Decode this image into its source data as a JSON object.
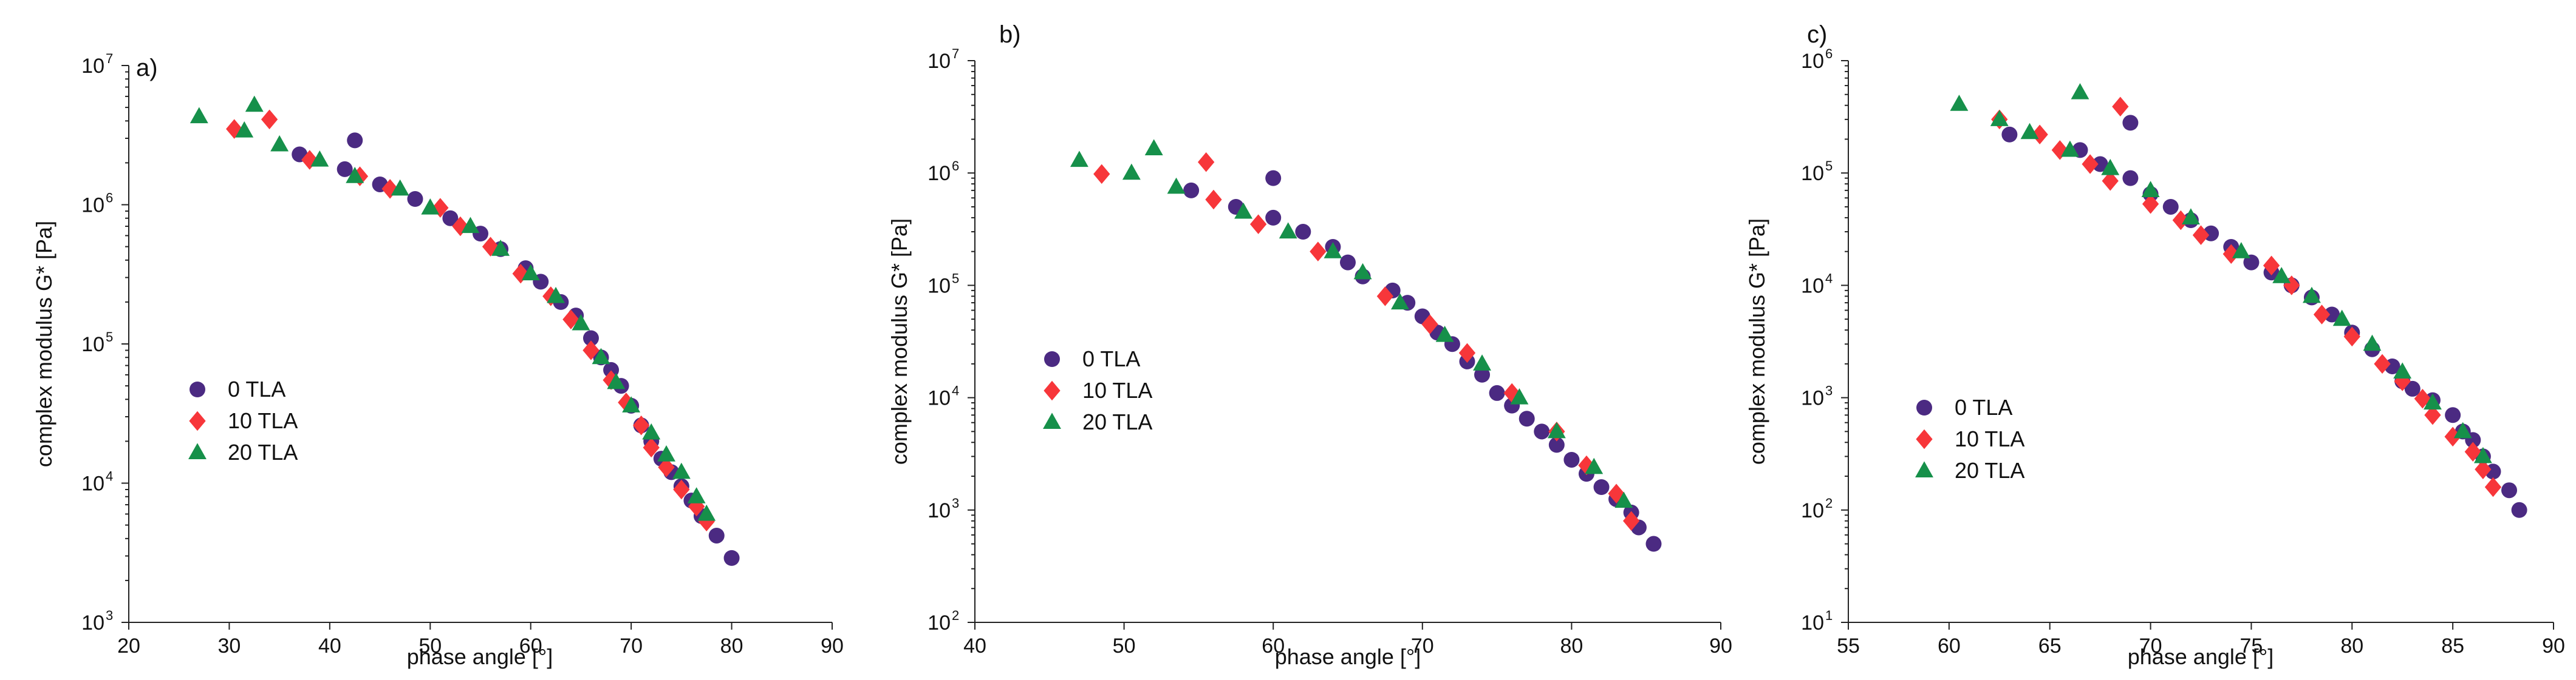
{
  "colors": {
    "0 TLA": "#4b2a82",
    "10 TLA": "#f7363a",
    "20 TLA": "#16904a"
  },
  "chart_data": [
    {
      "type": "scatter",
      "panel": "a)",
      "xlabel": "phase angle [°]",
      "ylabel": "complex modulus G* [Pa]",
      "xlim": [
        20,
        90
      ],
      "xticks": [
        20,
        30,
        40,
        50,
        60,
        70,
        80,
        90
      ],
      "ylog": true,
      "ylim_exp": [
        3,
        7
      ],
      "yticks_exp": [
        3,
        4,
        5,
        6,
        7
      ],
      "legend_position": "middle-left",
      "series": [
        {
          "name": "0 TLA",
          "marker": "circle",
          "points": [
            [
              42.5,
              2900000.0
            ],
            [
              37,
              2300000.0
            ],
            [
              41.5,
              1800000.0
            ],
            [
              45,
              1400000.0
            ],
            [
              48.5,
              1100000.0
            ],
            [
              52,
              800000.0
            ],
            [
              55,
              620000.0
            ],
            [
              57,
              480000.0
            ],
            [
              59.5,
              350000.0
            ],
            [
              61,
              280000.0
            ],
            [
              63,
              200000.0
            ],
            [
              64.5,
              160000.0
            ],
            [
              66,
              110000.0
            ],
            [
              67,
              80000.0
            ],
            [
              68,
              65000.0
            ],
            [
              69,
              50000.0
            ],
            [
              70,
              36000.0
            ],
            [
              71,
              26000.0
            ],
            [
              72,
              20000.0
            ],
            [
              73,
              15000.0
            ],
            [
              74,
              12000.0
            ],
            [
              75,
              9500.0
            ],
            [
              76,
              7500.0
            ],
            [
              77,
              5800.0
            ],
            [
              78.5,
              4200.0
            ],
            [
              80,
              2900.0
            ]
          ]
        },
        {
          "name": "10 TLA",
          "marker": "diamond",
          "points": [
            [
              34,
              4100000.0
            ],
            [
              30.5,
              3500000.0
            ],
            [
              38,
              2100000.0
            ],
            [
              43,
              1600000.0
            ],
            [
              46,
              1300000.0
            ],
            [
              51,
              950000.0
            ],
            [
              53,
              700000.0
            ],
            [
              56,
              500000.0
            ],
            [
              59,
              320000.0
            ],
            [
              62,
              220000.0
            ],
            [
              64,
              150000.0
            ],
            [
              66,
              90000.0
            ],
            [
              68,
              55000.0
            ],
            [
              69.5,
              38000.0
            ],
            [
              71,
              26000.0
            ],
            [
              72,
              18000.0
            ],
            [
              73.5,
              13000.0
            ],
            [
              75,
              9000.0
            ],
            [
              76.5,
              6800.0
            ],
            [
              77.5,
              5300.0
            ]
          ]
        },
        {
          "name": "20 TLA",
          "marker": "triangle",
          "points": [
            [
              32.5,
              5200000.0
            ],
            [
              27,
              4300000.0
            ],
            [
              31.5,
              3400000.0
            ],
            [
              35,
              2700000.0
            ],
            [
              39,
              2100000.0
            ],
            [
              42.5,
              1600000.0
            ],
            [
              47,
              1300000.0
            ],
            [
              50,
              950000.0
            ],
            [
              54,
              700000.0
            ],
            [
              57,
              480000.0
            ],
            [
              60,
              320000.0
            ],
            [
              62.5,
              220000.0
            ],
            [
              65,
              140000.0
            ],
            [
              67,
              80000.0
            ],
            [
              68.5,
              53000.0
            ],
            [
              70,
              36000.0
            ],
            [
              72,
              23000.0
            ],
            [
              73.5,
              16000.0
            ],
            [
              75,
              12000.0
            ],
            [
              76.5,
              8000.0
            ],
            [
              77.5,
              6000.0
            ]
          ]
        }
      ]
    },
    {
      "type": "scatter",
      "panel": "b)",
      "xlabel": "phase angle [°]",
      "ylabel": "complex modulus G* [Pa]",
      "xlim": [
        40,
        90
      ],
      "xticks": [
        40,
        50,
        60,
        70,
        80,
        90
      ],
      "ylog": true,
      "ylim_exp": [
        2,
        7
      ],
      "yticks_exp": [
        2,
        3,
        4,
        5,
        6,
        7
      ],
      "legend_position": "middle-left",
      "series": [
        {
          "name": "0 TLA",
          "marker": "circle",
          "points": [
            [
              60,
              900000.0
            ],
            [
              54.5,
              700000.0
            ],
            [
              57.5,
              500000.0
            ],
            [
              60,
              400000.0
            ],
            [
              62,
              300000.0
            ],
            [
              64,
              220000.0
            ],
            [
              65,
              160000.0
            ],
            [
              66,
              120000.0
            ],
            [
              68,
              90000.0
            ],
            [
              69,
              70000.0
            ],
            [
              70,
              53000.0
            ],
            [
              71,
              38000.0
            ],
            [
              72,
              30000.0
            ],
            [
              73,
              21000.0
            ],
            [
              74,
              16000.0
            ],
            [
              75,
              11000.0
            ],
            [
              76,
              8500.0
            ],
            [
              77,
              6500.0
            ],
            [
              78,
              5000.0
            ],
            [
              79,
              3800.0
            ],
            [
              80,
              2800.0
            ],
            [
              81,
              2100.0
            ],
            [
              82,
              1600.0
            ],
            [
              83,
              1250.0
            ],
            [
              84,
              950.0
            ],
            [
              84.5,
              700.0
            ],
            [
              85.5,
              500.0
            ]
          ]
        },
        {
          "name": "10 TLA",
          "marker": "diamond",
          "points": [
            [
              55.5,
              1250000.0
            ],
            [
              48.5,
              980000.0
            ],
            [
              56,
              580000.0
            ],
            [
              59,
              350000.0
            ],
            [
              63,
              200000.0
            ],
            [
              67.5,
              80000.0
            ],
            [
              70.5,
              45000.0
            ],
            [
              73,
              25000.0
            ],
            [
              76,
              11000.0
            ],
            [
              79,
              5000.0
            ],
            [
              81,
              2500.0
            ],
            [
              83,
              1400.0
            ],
            [
              84,
              800.0
            ]
          ]
        },
        {
          "name": "20 TLA",
          "marker": "triangle",
          "points": [
            [
              52,
              1650000.0
            ],
            [
              47,
              1300000.0
            ],
            [
              50.5,
              1000000.0
            ],
            [
              53.5,
              750000.0
            ],
            [
              58,
              450000.0
            ],
            [
              61,
              300000.0
            ],
            [
              64,
              200000.0
            ],
            [
              66,
              130000.0
            ],
            [
              68.5,
              70000.0
            ],
            [
              71.5,
              36000.0
            ],
            [
              74,
              20000.0
            ],
            [
              76.5,
              10000.0
            ],
            [
              79,
              5000.0
            ],
            [
              81.5,
              2400.0
            ],
            [
              83.5,
              1200.0
            ]
          ]
        }
      ]
    },
    {
      "type": "scatter",
      "panel": "c)",
      "xlabel": "phase angle [°]",
      "ylabel": "complex modulus G* [Pa]",
      "xlim": [
        55,
        90
      ],
      "xticks": [
        55,
        60,
        65,
        70,
        75,
        80,
        85,
        90
      ],
      "ylog": true,
      "ylim_exp": [
        1,
        6
      ],
      "yticks_exp": [
        1,
        2,
        3,
        4,
        5,
        6
      ],
      "legend_position": "lower-left",
      "series": [
        {
          "name": "0 TLA",
          "marker": "circle",
          "points": [
            [
              69,
              280000.0
            ],
            [
              63,
              220000.0
            ],
            [
              66.5,
              160000.0
            ],
            [
              67.5,
              120000.0
            ],
            [
              69,
              90000.0
            ],
            [
              70,
              65000.0
            ],
            [
              71,
              50000.0
            ],
            [
              72,
              38000.0
            ],
            [
              73,
              29000.0
            ],
            [
              74,
              22000.0
            ],
            [
              75,
              16000.0
            ],
            [
              76,
              13000.0
            ],
            [
              77,
              10000.0
            ],
            [
              78,
              7800.0
            ],
            [
              79,
              5500.0
            ],
            [
              80,
              3800.0
            ],
            [
              81,
              2700.0
            ],
            [
              82,
              1900.0
            ],
            [
              82.5,
              1400.0
            ],
            [
              83,
              1200.0
            ],
            [
              84,
              950.0
            ],
            [
              85,
              700.0
            ],
            [
              85.5,
              500.0
            ],
            [
              86,
              420.0
            ],
            [
              86.5,
              300.0
            ],
            [
              87,
              220.0
            ],
            [
              87.8,
              150.0
            ],
            [
              88.3,
              100.0
            ]
          ]
        },
        {
          "name": "10 TLA",
          "marker": "diamond",
          "points": [
            [
              68.5,
              390000.0
            ],
            [
              62.5,
              300000.0
            ],
            [
              64.5,
              220000.0
            ],
            [
              65.5,
              160000.0
            ],
            [
              67,
              120000.0
            ],
            [
              68,
              85000.0
            ],
            [
              70,
              53000.0
            ],
            [
              71.5,
              38000.0
            ],
            [
              72.5,
              28000.0
            ],
            [
              74,
              19000.0
            ],
            [
              76,
              15000.0
            ],
            [
              77,
              10000.0
            ],
            [
              78.5,
              5500.0
            ],
            [
              80,
              3500.0
            ],
            [
              81.5,
              2000.0
            ],
            [
              82.5,
              1400.0
            ],
            [
              83.5,
              980.0
            ],
            [
              84,
              700.0
            ],
            [
              85,
              450.0
            ],
            [
              86,
              330.0
            ],
            [
              86.5,
              230.0
            ],
            [
              87,
              160.0
            ]
          ]
        },
        {
          "name": "20 TLA",
          "marker": "triangle",
          "points": [
            [
              66.5,
              520000.0
            ],
            [
              60.5,
              410000.0
            ],
            [
              62.5,
              300000.0
            ],
            [
              64,
              230000.0
            ],
            [
              66,
              160000.0
            ],
            [
              68,
              110000.0
            ],
            [
              70,
              70000.0
            ],
            [
              72,
              40000.0
            ],
            [
              74.5,
              20000.0
            ],
            [
              76.5,
              12000.0
            ],
            [
              78,
              8000.0
            ],
            [
              79.5,
              5000.0
            ],
            [
              81,
              3000.0
            ],
            [
              82.5,
              1700.0
            ],
            [
              84,
              900.0
            ],
            [
              85.5,
              500.0
            ],
            [
              86.5,
              300.0
            ]
          ]
        }
      ]
    }
  ]
}
